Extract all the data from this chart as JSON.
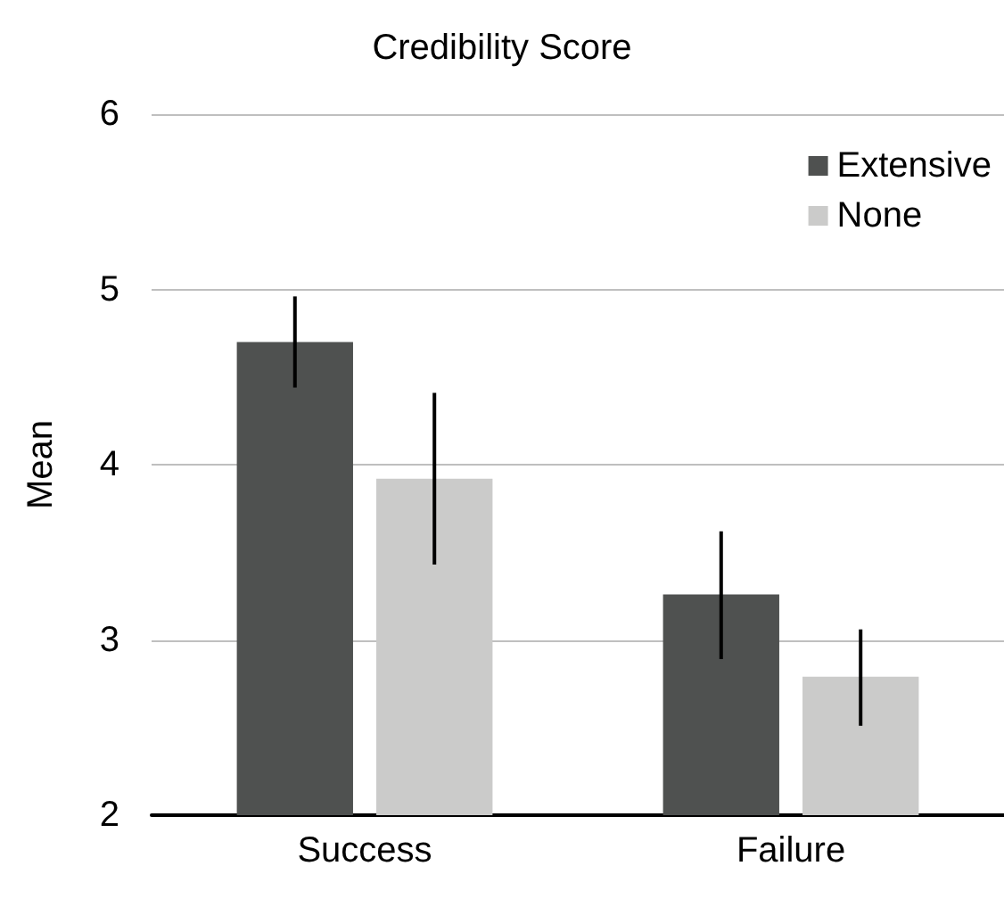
{
  "chart_data": {
    "type": "bar",
    "title": "Credibility Score",
    "ylabel": "Mean",
    "categories": [
      "Success",
      "Failure"
    ],
    "series": [
      {
        "name": "Extensive",
        "color": "#4f5150",
        "values": [
          4.7,
          3.26
        ],
        "errors": [
          [
            4.44,
            4.96
          ],
          [
            2.89,
            3.62
          ]
        ]
      },
      {
        "name": "None",
        "color": "#cbcbca",
        "values": [
          3.92,
          2.79
        ],
        "errors": [
          [
            3.43,
            4.41
          ],
          [
            2.51,
            3.06
          ]
        ]
      }
    ],
    "ylim": [
      2,
      6
    ],
    "yticks": [
      2,
      3,
      4,
      5,
      6
    ],
    "grid": "y",
    "legend": "top right"
  }
}
